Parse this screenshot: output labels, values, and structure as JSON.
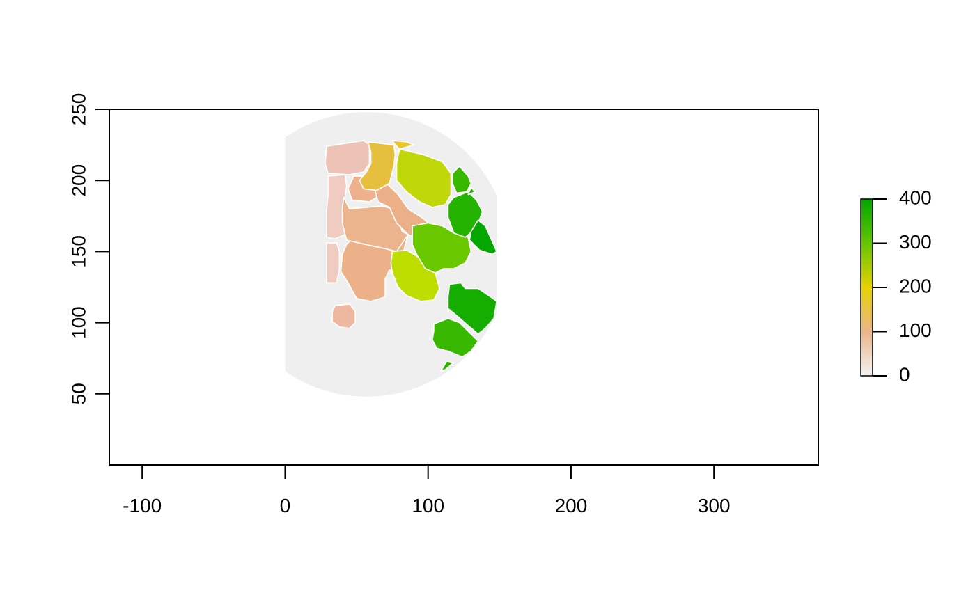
{
  "chart_data": {
    "type": "heatmap",
    "description_free": true,
    "title": "",
    "xlabel": "",
    "ylabel": "",
    "xlim": [
      -123,
      373
    ],
    "ylim": [
      0,
      250
    ],
    "x_ticks": [
      -100,
      0,
      100,
      200,
      300
    ],
    "y_ticks": [
      50,
      100,
      150,
      200,
      250
    ],
    "grid": false,
    "legend": "colorbar-right",
    "colorbar": {
      "range": [
        0,
        400
      ],
      "ticks": [
        0,
        100,
        200,
        300,
        400
      ],
      "stops": [
        {
          "value": 0,
          "color": "#f2f2f2"
        },
        {
          "value": 100,
          "color": "#ebb58a"
        },
        {
          "value": 200,
          "color": "#e6d200"
        },
        {
          "value": 300,
          "color": "#65c400"
        },
        {
          "value": 400,
          "color": "#00a600"
        }
      ]
    },
    "background_region": {
      "shape": "disc",
      "center": [
        57,
        148
      ],
      "radius": 100,
      "x_range": [
        0,
        148
      ],
      "value": 0,
      "color": "#f0eff0"
    },
    "regions": [
      {
        "id": "r01",
        "value": 55,
        "color": "#ecc3b6",
        "points": [
          [
            29,
            224
          ],
          [
            55,
            228
          ],
          [
            59,
            225
          ],
          [
            59,
            212
          ],
          [
            55,
            206
          ],
          [
            45,
            204
          ],
          [
            30,
            205
          ],
          [
            28,
            212
          ]
        ]
      },
      {
        "id": "r02",
        "value": 40,
        "color": "#efcbc2",
        "points": [
          [
            30,
            203
          ],
          [
            42,
            204
          ],
          [
            43,
            196
          ],
          [
            41,
            182
          ],
          [
            42,
            162
          ],
          [
            35,
            159
          ],
          [
            29,
            160
          ],
          [
            29,
            178
          ],
          [
            30,
            190
          ]
        ]
      },
      {
        "id": "r03",
        "value": 45,
        "color": "#efcbc2",
        "points": [
          [
            29,
            156
          ],
          [
            36,
            156
          ],
          [
            38,
            150
          ],
          [
            38,
            138
          ],
          [
            36,
            128
          ],
          [
            29,
            128
          ]
        ]
      },
      {
        "id": "r04",
        "value": 90,
        "color": "#edb89f",
        "points": [
          [
            35,
            112
          ],
          [
            45,
            113
          ],
          [
            49,
            108
          ],
          [
            49,
            100
          ],
          [
            45,
            96
          ],
          [
            38,
            97
          ],
          [
            33,
            101
          ],
          [
            33,
            108
          ]
        ]
      },
      {
        "id": "r05",
        "value": 95,
        "color": "#ecb189",
        "points": [
          [
            43,
            155
          ],
          [
            52,
            164
          ],
          [
            67,
            167
          ],
          [
            86,
            162
          ],
          [
            80,
            140
          ],
          [
            75,
            137
          ],
          [
            73,
            137
          ],
          [
            70,
            131
          ],
          [
            70,
            118
          ],
          [
            60,
            115
          ],
          [
            50,
            117
          ],
          [
            44,
            128
          ],
          [
            39,
            136
          ],
          [
            40,
            148
          ]
        ]
      },
      {
        "id": "r06",
        "value": 100,
        "color": "#ecb48c",
        "points": [
          [
            41,
            188
          ],
          [
            45,
            180
          ],
          [
            68,
            182
          ],
          [
            75,
            180
          ],
          [
            79,
            172
          ],
          [
            82,
            164
          ],
          [
            86,
            162
          ],
          [
            78,
            150
          ],
          [
            70,
            152
          ],
          [
            56,
            155
          ],
          [
            43,
            158
          ],
          [
            40,
            170
          ],
          [
            40,
            180
          ]
        ]
      },
      {
        "id": "r07",
        "value": 110,
        "color": "#edb18e",
        "points": [
          [
            48,
            203
          ],
          [
            60,
            203
          ],
          [
            65,
            198
          ],
          [
            64,
            188
          ],
          [
            59,
            185
          ],
          [
            47,
            186
          ],
          [
            44,
            194
          ]
        ]
      },
      {
        "id": "r08",
        "value": 120,
        "color": "#ebb087",
        "points": [
          [
            62,
            196
          ],
          [
            72,
            197
          ],
          [
            79,
            190
          ],
          [
            86,
            180
          ],
          [
            97,
            173
          ],
          [
            105,
            165
          ],
          [
            108,
            160
          ],
          [
            98,
            157
          ],
          [
            86,
            162
          ],
          [
            78,
            170
          ],
          [
            73,
            181
          ],
          [
            65,
            185
          ]
        ]
      },
      {
        "id": "r09",
        "value": 180,
        "color": "#e7bf3e",
        "points": [
          [
            58,
            227
          ],
          [
            76,
            225
          ],
          [
            77,
            218
          ],
          [
            76,
            210
          ],
          [
            73,
            198
          ],
          [
            64,
            193
          ],
          [
            55,
            194
          ],
          [
            52,
            200
          ],
          [
            57,
            206
          ],
          [
            60,
            212
          ],
          [
            60,
            220
          ]
        ]
      },
      {
        "id": "r10",
        "value": 190,
        "color": "#e8c62c",
        "points": [
          [
            75,
            228
          ],
          [
            85,
            227
          ],
          [
            90,
            225
          ],
          [
            80,
            222
          ],
          [
            77,
            225
          ]
        ]
      },
      {
        "id": "r11",
        "value": 220,
        "color": "#c0d70a",
        "points": [
          [
            80,
            222
          ],
          [
            97,
            218
          ],
          [
            110,
            213
          ],
          [
            116,
            205
          ],
          [
            116,
            190
          ],
          [
            112,
            183
          ],
          [
            103,
            181
          ],
          [
            94,
            185
          ],
          [
            85,
            192
          ],
          [
            78,
            200
          ],
          [
            78,
            212
          ]
        ]
      },
      {
        "id": "r12",
        "value": 225,
        "color": "#bedd00",
        "points": [
          [
            75,
            150
          ],
          [
            85,
            151
          ],
          [
            95,
            145
          ],
          [
            105,
            135
          ],
          [
            108,
            124
          ],
          [
            104,
            116
          ],
          [
            95,
            115
          ],
          [
            85,
            119
          ],
          [
            79,
            125
          ],
          [
            75,
            135
          ],
          [
            74,
            142
          ]
        ]
      },
      {
        "id": "r13",
        "value": 310,
        "color": "#6ac800",
        "points": [
          [
            89,
            168
          ],
          [
            100,
            170
          ],
          [
            110,
            168
          ],
          [
            118,
            163
          ],
          [
            128,
            160
          ],
          [
            130,
            150
          ],
          [
            126,
            142
          ],
          [
            118,
            138
          ],
          [
            111,
            138
          ],
          [
            105,
            135
          ],
          [
            98,
            138
          ],
          [
            92,
            148
          ],
          [
            89,
            155
          ]
        ]
      },
      {
        "id": "r14",
        "value": 340,
        "color": "#39b800",
        "points": [
          [
            122,
            210
          ],
          [
            128,
            203
          ],
          [
            130,
            198
          ],
          [
            127,
            192
          ],
          [
            120,
            191
          ],
          [
            117,
            198
          ],
          [
            117,
            205
          ]
        ]
      },
      {
        "id": "r15",
        "value": 350,
        "color": "#23b300",
        "points": [
          [
            118,
            188
          ],
          [
            128,
            192
          ],
          [
            134,
            186
          ],
          [
            138,
            178
          ],
          [
            134,
            167
          ],
          [
            126,
            160
          ],
          [
            118,
            163
          ],
          [
            114,
            174
          ],
          [
            114,
            183
          ]
        ]
      },
      {
        "id": "r16",
        "value": 360,
        "color": "#1fb100",
        "points": [
          [
            130,
            195
          ],
          [
            133,
            192
          ],
          [
            128,
            190
          ]
        ]
      },
      {
        "id": "r17",
        "value": 390,
        "color": "#05a600",
        "points": [
          [
            135,
            172
          ],
          [
            140,
            168
          ],
          [
            148,
            150
          ],
          [
            145,
            148
          ],
          [
            136,
            151
          ],
          [
            129,
            158
          ],
          [
            130,
            164
          ]
        ]
      },
      {
        "id": "r18",
        "value": 370,
        "color": "#14ad00",
        "points": [
          [
            115,
            127
          ],
          [
            123,
            128
          ],
          [
            126,
            124
          ],
          [
            135,
            124
          ],
          [
            144,
            118
          ],
          [
            148,
            115
          ],
          [
            146,
            103
          ],
          [
            140,
            96
          ],
          [
            135,
            92
          ],
          [
            128,
            98
          ],
          [
            120,
            105
          ],
          [
            114,
            110
          ],
          [
            114,
            118
          ]
        ]
      },
      {
        "id": "r19",
        "value": 330,
        "color": "#38b900",
        "points": [
          [
            104,
            99
          ],
          [
            114,
            103
          ],
          [
            122,
            100
          ],
          [
            126,
            96
          ],
          [
            135,
            87
          ],
          [
            130,
            80
          ],
          [
            124,
            76
          ],
          [
            114,
            80
          ],
          [
            106,
            82
          ],
          [
            103,
            88
          ],
          [
            104,
            94
          ]
        ]
      },
      {
        "id": "r20",
        "value": 345,
        "color": "#2db500",
        "points": [
          [
            113,
            73
          ],
          [
            118,
            72
          ],
          [
            112,
            67
          ],
          [
            109,
            66
          ]
        ]
      }
    ]
  }
}
